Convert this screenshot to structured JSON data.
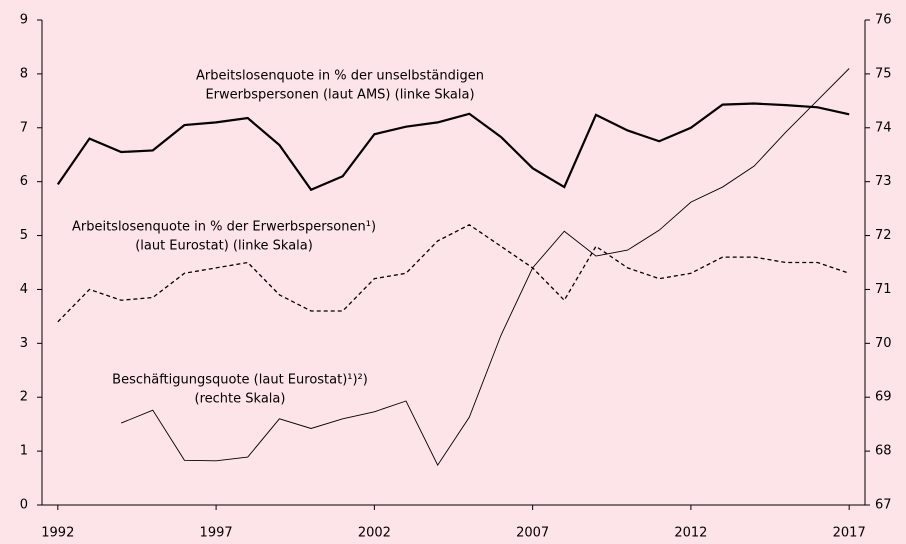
{
  "chart_data": {
    "type": "line",
    "x": [
      1992,
      1993,
      1994,
      1995,
      1996,
      1997,
      1998,
      1999,
      2000,
      2001,
      2002,
      2003,
      2004,
      2005,
      2006,
      2007,
      2008,
      2009,
      2010,
      2011,
      2012,
      2013,
      2014,
      2015,
      2016,
      2017
    ],
    "xlim": [
      1991.5,
      2017.5
    ],
    "xticks": [
      1992,
      1997,
      2002,
      2007,
      2012,
      2017
    ],
    "ylim": [
      0,
      9
    ],
    "yticks": [
      0,
      1,
      2,
      3,
      4,
      5,
      6,
      7,
      8,
      9
    ],
    "y2lim": [
      67,
      76
    ],
    "y2ticks": [
      67,
      68,
      69,
      70,
      71,
      72,
      73,
      74,
      75,
      76
    ],
    "series": [
      {
        "name": "Arbeitslosenquote in % der unselbständigen Erwerbspersonen (laut AMS) (linke Skala)",
        "color": "#000000",
        "style": "thick",
        "values": [
          5.95,
          6.8,
          6.55,
          6.58,
          7.05,
          7.1,
          7.18,
          6.68,
          5.85,
          6.1,
          6.88,
          7.02,
          7.1,
          7.26,
          6.83,
          6.25,
          5.9,
          7.24,
          6.95,
          6.75,
          7.0,
          7.43,
          7.45,
          7.42,
          7.38,
          7.25
        ]
      },
      {
        "name": "Arbeitslosenquote in % der Erwerbspersonen¹) (laut Eurostat) (linke Skala)",
        "color": "#000000",
        "style": "dashed",
        "values": [
          3.4,
          4.0,
          3.8,
          3.85,
          4.3,
          4.4,
          4.5,
          3.9,
          3.6,
          3.6,
          4.2,
          4.3,
          4.9,
          5.2,
          4.8,
          4.4,
          3.8,
          4.8,
          4.4,
          4.2,
          4.3,
          4.6,
          4.6,
          4.5,
          4.5,
          4.3
        ]
      },
      {
        "name": "Beschäftigungsquote (laut Eurostat)¹)²) (rechte Skala)",
        "color": "#000000",
        "style": "thin",
        "axis": "y2",
        "values": [
          null,
          null,
          68.52,
          68.76,
          67.83,
          67.82,
          67.89,
          68.6,
          68.42,
          68.6,
          68.73,
          68.93,
          67.74,
          68.63,
          70.15,
          71.4,
          72.08,
          71.62,
          71.73,
          72.1,
          72.62,
          72.9,
          73.29,
          73.92,
          74.51,
          75.1
        ]
      }
    ],
    "annotations": [
      {
        "lines": [
          "Arbeitslosenquote in % der unselbständigen",
          "Erwerbspersonen (laut AMS) (linke Skala)"
        ]
      },
      {
        "lines": [
          "Arbeitslosenquote in % der Erwerbspersonen¹)",
          "(laut Eurostat)  (linke Skala)"
        ]
      },
      {
        "lines": [
          "Beschäftigungsquote (laut Eurostat)¹)²)",
          "(rechte Skala)"
        ]
      }
    ]
  }
}
